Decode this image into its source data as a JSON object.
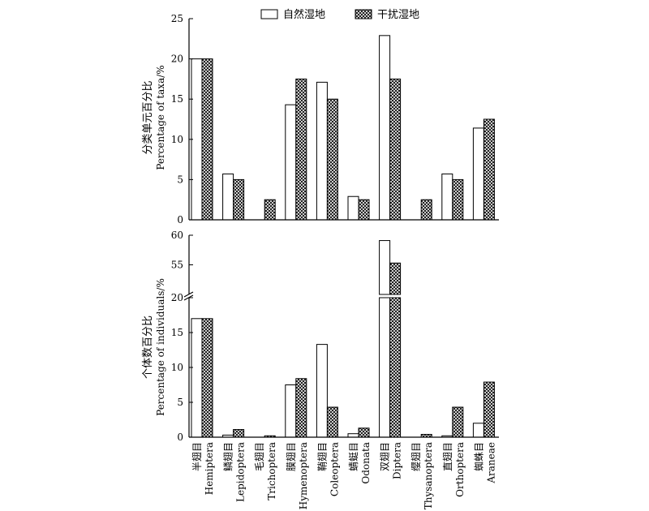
{
  "legend": {
    "natural": "自然湿地",
    "disturbed": "干扰湿地"
  },
  "chart_data": [
    {
      "type": "bar",
      "ylabel_cn": "分类单元百分比",
      "ylabel_en": "Percentage of taxa/%",
      "ylim": [
        0,
        25
      ],
      "yticks": [
        "0",
        "5",
        "10",
        "15",
        "20",
        "25"
      ],
      "categories": [
        {
          "cn": "半翅目",
          "en": "Hemiptera"
        },
        {
          "cn": "鳞翅目",
          "en": "Lepidoptera"
        },
        {
          "cn": "毛翅目",
          "en": "Trichoptera"
        },
        {
          "cn": "膜翅目",
          "en": "Hymenoptera"
        },
        {
          "cn": "鞘翅目",
          "en": "Coleoptera"
        },
        {
          "cn": "蜻蜓目",
          "en": "Odonata"
        },
        {
          "cn": "双翅目",
          "en": "Diptera"
        },
        {
          "cn": "缨翅目",
          "en": "Thysanoptera"
        },
        {
          "cn": "直翅目",
          "en": "Orthoptera"
        },
        {
          "cn": "蜘蛛目",
          "en": "Araneae"
        }
      ],
      "series": [
        {
          "name": "自然湿地",
          "values": [
            20.0,
            5.7,
            0,
            14.3,
            17.1,
            2.9,
            22.9,
            0,
            5.7,
            11.4
          ]
        },
        {
          "name": "干扰湿地",
          "values": [
            20.0,
            5.0,
            2.5,
            17.5,
            15.0,
            2.5,
            17.5,
            2.5,
            5.0,
            12.5
          ]
        }
      ]
    },
    {
      "type": "bar",
      "ylabel_cn": "个体数百分比",
      "ylabel_en": "Percentage of individuals/%",
      "broken_axis": {
        "lower": [
          0,
          20
        ],
        "upper": [
          50,
          60
        ]
      },
      "yticks_lower": [
        "0",
        "5",
        "10",
        "15",
        "20"
      ],
      "yticks_upper": [
        "55",
        "60"
      ],
      "categories": [
        {
          "cn": "半翅目",
          "en": "Hemiptera"
        },
        {
          "cn": "鳞翅目",
          "en": "Lepidoptera"
        },
        {
          "cn": "毛翅目",
          "en": "Trichoptera"
        },
        {
          "cn": "膜翅目",
          "en": "Hymenoptera"
        },
        {
          "cn": "鞘翅目",
          "en": "Coleoptera"
        },
        {
          "cn": "蜻蜓目",
          "en": "Odonata"
        },
        {
          "cn": "双翅目",
          "en": "Diptera"
        },
        {
          "cn": "缨翅目",
          "en": "Thysanoptera"
        },
        {
          "cn": "直翅目",
          "en": "Orthoptera"
        },
        {
          "cn": "蜘蛛目",
          "en": "Araneae"
        }
      ],
      "series": [
        {
          "name": "自然湿地",
          "values": [
            17.0,
            0.3,
            0,
            7.5,
            13.3,
            0.5,
            59.1,
            0,
            0.2,
            2.0
          ]
        },
        {
          "name": "干扰湿地",
          "values": [
            17.0,
            1.1,
            0.2,
            8.4,
            4.3,
            1.3,
            55.3,
            0.4,
            4.3,
            7.9
          ]
        }
      ]
    }
  ]
}
